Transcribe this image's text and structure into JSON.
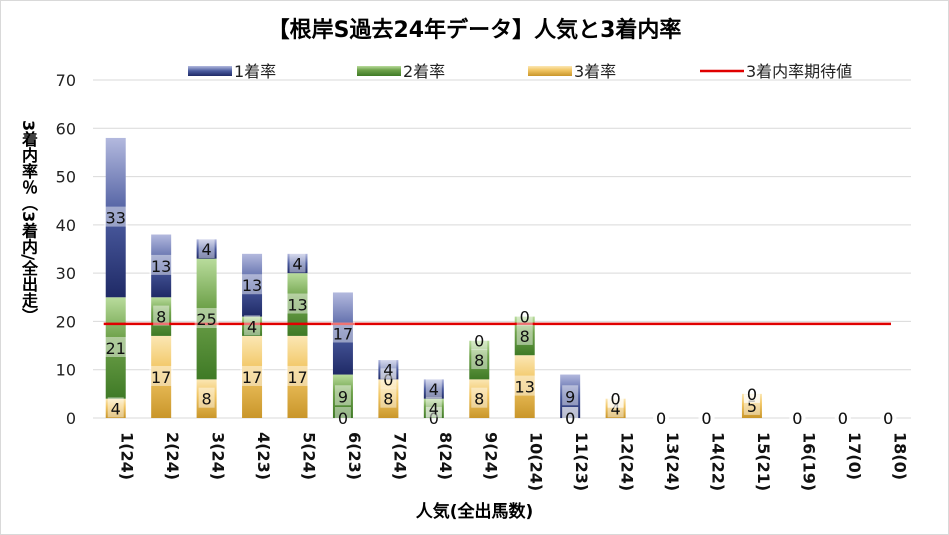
{
  "chart_data": {
    "type": "bar",
    "title": "【根岸S過去24年データ】人気と3着内率",
    "ylabel": "3着内率％（3着内/全出走）",
    "xlabel": "人気(全出馬数)",
    "ylim": [
      0,
      70
    ],
    "yticks": [
      0,
      10,
      20,
      30,
      40,
      50,
      60,
      70
    ],
    "grid": true,
    "legend_position": "top",
    "stacked": true,
    "categories": [
      "1(24)",
      "2(24)",
      "3(24)",
      "4(23)",
      "5(24)",
      "6(23)",
      "7(24)",
      "8(24)",
      "9(24)",
      "10(24)",
      "11(23)",
      "12(24)",
      "13(24)",
      "14(22)",
      "15(21)",
      "16(19)",
      "17(0)",
      "18(0)"
    ],
    "series": [
      {
        "name": "3着率",
        "color": "#f2c766",
        "values": [
          4,
          17,
          8,
          17,
          17,
          0,
          8,
          0,
          8,
          13,
          0,
          4,
          0,
          0,
          5,
          0,
          0,
          0
        ]
      },
      {
        "name": "2着率",
        "color": "#6fa24b",
        "values": [
          21,
          8,
          25,
          4,
          13,
          9,
          0,
          4,
          8,
          8,
          0,
          0,
          0,
          0,
          0,
          0,
          0,
          0
        ]
      },
      {
        "name": "1着率",
        "color": "#4a5a9e",
        "values": [
          33,
          13,
          4,
          13,
          4,
          17,
          4,
          4,
          0,
          0,
          9,
          0,
          0,
          0,
          0,
          0,
          0,
          0
        ]
      }
    ],
    "reference_line": {
      "name": "3着内率期待値",
      "value": 19.5,
      "color": "#e00000"
    }
  }
}
